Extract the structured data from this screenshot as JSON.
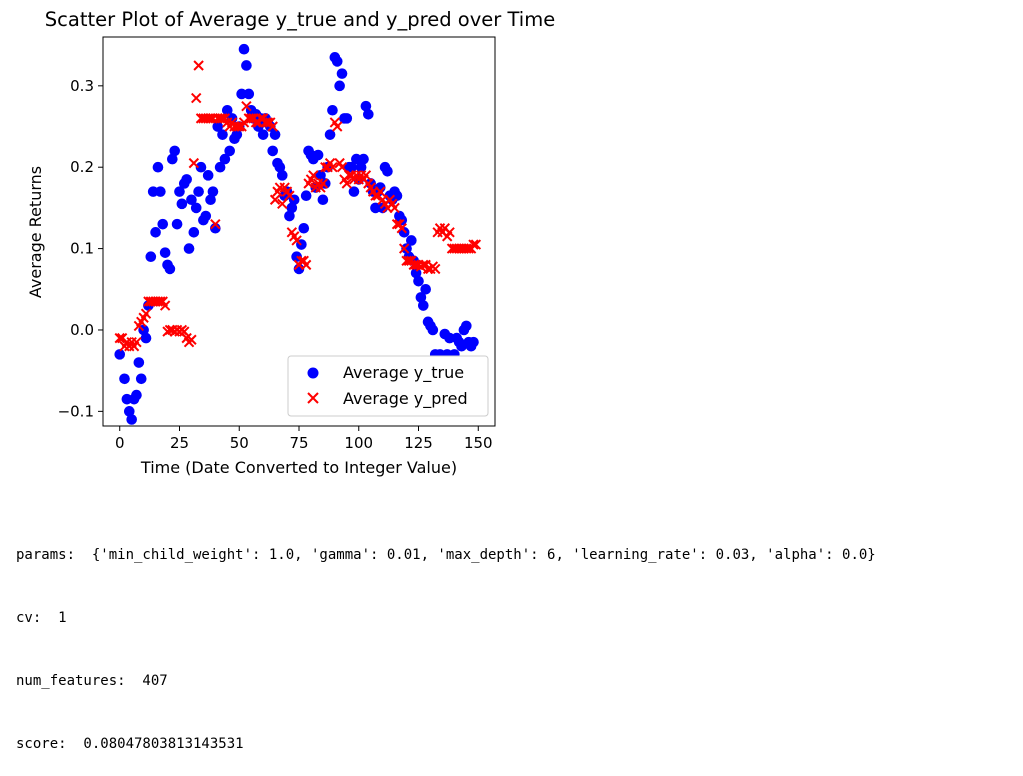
{
  "chart_data": {
    "type": "scatter",
    "title": "Scatter Plot of Average y_true and y_pred over Time",
    "xlabel": "Time (Date Converted to Integer Value)",
    "ylabel": "Average Returns",
    "xlim": [
      -7,
      157
    ],
    "ylim": [
      -0.118,
      0.36
    ],
    "xticks": [
      0,
      25,
      50,
      75,
      100,
      125,
      150
    ],
    "yticks": [
      -0.1,
      0.0,
      0.1,
      0.2,
      0.3
    ],
    "ytick_labels": [
      "−0.1",
      "0.0",
      "0.1",
      "0.2",
      "0.3"
    ],
    "grid": false,
    "legend_position": "lower right",
    "series": [
      {
        "name": "Average y_true",
        "marker": "circle",
        "color": "#0000ff",
        "points": [
          [
            0,
            -0.03
          ],
          [
            2,
            -0.06
          ],
          [
            3,
            -0.085
          ],
          [
            4,
            -0.1
          ],
          [
            5,
            -0.11
          ],
          [
            6,
            -0.085
          ],
          [
            7,
            -0.08
          ],
          [
            8,
            -0.04
          ],
          [
            9,
            -0.06
          ],
          [
            10,
            0.0
          ],
          [
            11,
            -0.01
          ],
          [
            12,
            0.03
          ],
          [
            13,
            0.09
          ],
          [
            14,
            0.17
          ],
          [
            15,
            0.12
          ],
          [
            16,
            0.2
          ],
          [
            17,
            0.17
          ],
          [
            18,
            0.13
          ],
          [
            19,
            0.095
          ],
          [
            20,
            0.08
          ],
          [
            21,
            0.075
          ],
          [
            22,
            0.21
          ],
          [
            23,
            0.22
          ],
          [
            24,
            0.13
          ],
          [
            25,
            0.17
          ],
          [
            26,
            0.155
          ],
          [
            27,
            0.18
          ],
          [
            28,
            0.185
          ],
          [
            29,
            0.1
          ],
          [
            30,
            0.16
          ],
          [
            31,
            0.12
          ],
          [
            32,
            0.15
          ],
          [
            33,
            0.17
          ],
          [
            34,
            0.2
          ],
          [
            35,
            0.135
          ],
          [
            36,
            0.14
          ],
          [
            37,
            0.19
          ],
          [
            38,
            0.16
          ],
          [
            39,
            0.17
          ],
          [
            40,
            0.125
          ],
          [
            41,
            0.25
          ],
          [
            42,
            0.2
          ],
          [
            43,
            0.24
          ],
          [
            44,
            0.21
          ],
          [
            45,
            0.27
          ],
          [
            46,
            0.22
          ],
          [
            47,
            0.26
          ],
          [
            48,
            0.235
          ],
          [
            49,
            0.24
          ],
          [
            50,
            0.25
          ],
          [
            51,
            0.29
          ],
          [
            52,
            0.345
          ],
          [
            53,
            0.325
          ],
          [
            54,
            0.29
          ],
          [
            55,
            0.27
          ],
          [
            56,
            0.26
          ],
          [
            57,
            0.265
          ],
          [
            58,
            0.25
          ],
          [
            59,
            0.26
          ],
          [
            60,
            0.24
          ],
          [
            61,
            0.26
          ],
          [
            62,
            0.255
          ],
          [
            63,
            0.25
          ],
          [
            64,
            0.22
          ],
          [
            65,
            0.24
          ],
          [
            66,
            0.205
          ],
          [
            67,
            0.2
          ],
          [
            68,
            0.19
          ],
          [
            69,
            0.165
          ],
          [
            70,
            0.17
          ],
          [
            71,
            0.14
          ],
          [
            72,
            0.15
          ],
          [
            73,
            0.16
          ],
          [
            74,
            0.09
          ],
          [
            75,
            0.075
          ],
          [
            76,
            0.105
          ],
          [
            77,
            0.125
          ],
          [
            78,
            0.165
          ],
          [
            79,
            0.22
          ],
          [
            80,
            0.215
          ],
          [
            81,
            0.21
          ],
          [
            82,
            0.175
          ],
          [
            83,
            0.215
          ],
          [
            84,
            0.19
          ],
          [
            85,
            0.16
          ],
          [
            86,
            0.18
          ],
          [
            87,
            0.2
          ],
          [
            88,
            0.24
          ],
          [
            89,
            0.27
          ],
          [
            90,
            0.335
          ],
          [
            91,
            0.33
          ],
          [
            92,
            0.3
          ],
          [
            93,
            0.315
          ],
          [
            94,
            0.26
          ],
          [
            95,
            0.26
          ],
          [
            96,
            0.2
          ],
          [
            97,
            0.2
          ],
          [
            98,
            0.17
          ],
          [
            99,
            0.21
          ],
          [
            100,
            0.185
          ],
          [
            101,
            0.2
          ],
          [
            102,
            0.21
          ],
          [
            103,
            0.275
          ],
          [
            104,
            0.265
          ],
          [
            105,
            0.18
          ],
          [
            106,
            0.17
          ],
          [
            107,
            0.15
          ],
          [
            108,
            0.17
          ],
          [
            109,
            0.175
          ],
          [
            110,
            0.15
          ],
          [
            111,
            0.2
          ],
          [
            112,
            0.195
          ],
          [
            113,
            0.165
          ],
          [
            114,
            0.16
          ],
          [
            115,
            0.17
          ],
          [
            116,
            0.165
          ],
          [
            117,
            0.14
          ],
          [
            118,
            0.135
          ],
          [
            119,
            0.12
          ],
          [
            120,
            0.1
          ],
          [
            121,
            0.09
          ],
          [
            122,
            0.11
          ],
          [
            123,
            0.085
          ],
          [
            124,
            0.07
          ],
          [
            125,
            0.06
          ],
          [
            126,
            0.04
          ],
          [
            127,
            0.03
          ],
          [
            128,
            0.05
          ],
          [
            129,
            0.01
          ],
          [
            130,
            0.005
          ],
          [
            131,
            0.0
          ],
          [
            132,
            -0.03
          ],
          [
            133,
            -0.05
          ],
          [
            134,
            -0.03
          ],
          [
            135,
            -0.035
          ],
          [
            136,
            -0.005
          ],
          [
            137,
            -0.03
          ],
          [
            138,
            -0.01
          ],
          [
            139,
            -0.045
          ],
          [
            140,
            -0.03
          ],
          [
            141,
            -0.01
          ],
          [
            142,
            -0.015
          ],
          [
            143,
            -0.02
          ],
          [
            144,
            0.0
          ],
          [
            145,
            0.005
          ],
          [
            146,
            -0.015
          ],
          [
            147,
            -0.02
          ],
          [
            148,
            -0.015
          ]
        ]
      },
      {
        "name": "Average y_pred",
        "marker": "x",
        "color": "#ff0000",
        "points": [
          [
            0,
            -0.01
          ],
          [
            1,
            -0.01
          ],
          [
            2,
            -0.02
          ],
          [
            3,
            -0.015
          ],
          [
            4,
            -0.02
          ],
          [
            5,
            -0.015
          ],
          [
            6,
            -0.02
          ],
          [
            7,
            -0.015
          ],
          [
            8,
            0.005
          ],
          [
            9,
            0.01
          ],
          [
            10,
            0.015
          ],
          [
            11,
            0.02
          ],
          [
            12,
            0.035
          ],
          [
            13,
            0.035
          ],
          [
            14,
            0.035
          ],
          [
            15,
            0.035
          ],
          [
            16,
            0.035
          ],
          [
            17,
            0.035
          ],
          [
            18,
            0.035
          ],
          [
            19,
            0.03
          ],
          [
            20,
            -0.002
          ],
          [
            21,
            0.0
          ],
          [
            22,
            0.0
          ],
          [
            23,
            -0.002
          ],
          [
            24,
            0.0
          ],
          [
            25,
            -0.002
          ],
          [
            26,
            0.0
          ],
          [
            27,
            -0.002
          ],
          [
            28,
            -0.01
          ],
          [
            29,
            -0.015
          ],
          [
            30,
            -0.012
          ],
          [
            31,
            0.205
          ],
          [
            32,
            0.285
          ],
          [
            33,
            0.325
          ],
          [
            34,
            0.26
          ],
          [
            35,
            0.26
          ],
          [
            36,
            0.26
          ],
          [
            37,
            0.26
          ],
          [
            38,
            0.26
          ],
          [
            39,
            0.26
          ],
          [
            40,
            0.13
          ],
          [
            41,
            0.26
          ],
          [
            42,
            0.26
          ],
          [
            43,
            0.26
          ],
          [
            44,
            0.26
          ],
          [
            45,
            0.255
          ],
          [
            46,
            0.25
          ],
          [
            47,
            0.255
          ],
          [
            48,
            0.25
          ],
          [
            49,
            0.25
          ],
          [
            50,
            0.25
          ],
          [
            51,
            0.25
          ],
          [
            52,
            0.255
          ],
          [
            53,
            0.275
          ],
          [
            54,
            0.26
          ],
          [
            55,
            0.26
          ],
          [
            56,
            0.26
          ],
          [
            57,
            0.255
          ],
          [
            58,
            0.255
          ],
          [
            59,
            0.26
          ],
          [
            60,
            0.26
          ],
          [
            61,
            0.255
          ],
          [
            62,
            0.255
          ],
          [
            63,
            0.255
          ],
          [
            64,
            0.25
          ],
          [
            65,
            0.16
          ],
          [
            66,
            0.17
          ],
          [
            67,
            0.175
          ],
          [
            68,
            0.155
          ],
          [
            69,
            0.175
          ],
          [
            70,
            0.17
          ],
          [
            71,
            0.165
          ],
          [
            72,
            0.12
          ],
          [
            73,
            0.115
          ],
          [
            74,
            0.11
          ],
          [
            75,
            0.08
          ],
          [
            76,
            0.085
          ],
          [
            77,
            0.085
          ],
          [
            78,
            0.08
          ],
          [
            79,
            0.18
          ],
          [
            80,
            0.185
          ],
          [
            81,
            0.19
          ],
          [
            82,
            0.175
          ],
          [
            83,
            0.18
          ],
          [
            84,
            0.175
          ],
          [
            85,
            0.18
          ],
          [
            86,
            0.2
          ],
          [
            87,
            0.2
          ],
          [
            88,
            0.205
          ],
          [
            89,
            0.2
          ],
          [
            90,
            0.255
          ],
          [
            91,
            0.25
          ],
          [
            92,
            0.205
          ],
          [
            93,
            0.2
          ],
          [
            94,
            0.185
          ],
          [
            95,
            0.18
          ],
          [
            96,
            0.19
          ],
          [
            97,
            0.19
          ],
          [
            98,
            0.185
          ],
          [
            99,
            0.19
          ],
          [
            100,
            0.185
          ],
          [
            101,
            0.19
          ],
          [
            102,
            0.185
          ],
          [
            103,
            0.19
          ],
          [
            104,
            0.18
          ],
          [
            105,
            0.175
          ],
          [
            106,
            0.17
          ],
          [
            107,
            0.165
          ],
          [
            108,
            0.165
          ],
          [
            109,
            0.17
          ],
          [
            110,
            0.16
          ],
          [
            111,
            0.155
          ],
          [
            112,
            0.15
          ],
          [
            113,
            0.16
          ],
          [
            114,
            0.155
          ],
          [
            115,
            0.15
          ],
          [
            116,
            0.13
          ],
          [
            117,
            0.13
          ],
          [
            118,
            0.125
          ],
          [
            119,
            0.1
          ],
          [
            120,
            0.085
          ],
          [
            121,
            0.085
          ],
          [
            122,
            0.085
          ],
          [
            123,
            0.08
          ],
          [
            124,
            0.08
          ],
          [
            125,
            0.08
          ],
          [
            126,
            0.078
          ],
          [
            127,
            0.08
          ],
          [
            128,
            0.08
          ],
          [
            129,
            0.075
          ],
          [
            130,
            0.075
          ],
          [
            131,
            0.078
          ],
          [
            132,
            0.075
          ],
          [
            133,
            0.12
          ],
          [
            134,
            0.125
          ],
          [
            135,
            0.12
          ],
          [
            136,
            0.125
          ],
          [
            137,
            0.115
          ],
          [
            138,
            0.12
          ],
          [
            139,
            0.1
          ],
          [
            140,
            0.1
          ],
          [
            141,
            0.1
          ],
          [
            142,
            0.1
          ],
          [
            143,
            0.1
          ],
          [
            144,
            0.1
          ],
          [
            145,
            0.1
          ],
          [
            146,
            0.1
          ],
          [
            147,
            0.1
          ],
          [
            148,
            0.105
          ],
          [
            149,
            0.105
          ]
        ]
      }
    ]
  },
  "output": {
    "params_line": "params:  {'min_child_weight': 1.0, 'gamma': 0.01, 'max_depth': 6, 'learning_rate': 0.03, 'alpha': 0.0}",
    "cv_line": "cv:  1",
    "num_features_line": "num_features:  407",
    "score_line": "score:  0.08047803813143531"
  }
}
